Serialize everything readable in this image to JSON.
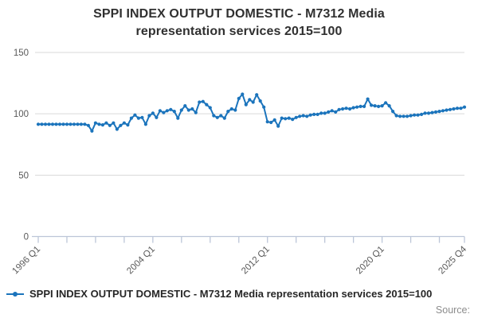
{
  "title_lines": [
    "SPPI INDEX OUTPUT DOMESTIC - M7312 Media",
    "representation services 2015=100"
  ],
  "legend": {
    "label": "SPPI INDEX OUTPUT DOMESTIC - M7312 Media representation services 2015=100"
  },
  "source": {
    "label": "Source:"
  },
  "colors": {
    "line": "#1b74bc",
    "grid": "#d9d9d9",
    "axis": "#bcc6d8",
    "tick_label": "#595959",
    "title_text": "#303030",
    "legend_text": "#262626",
    "source_text": "#8c8c8c"
  },
  "chart_data": {
    "type": "line",
    "title": "SPPI INDEX OUTPUT DOMESTIC - M7312 Media representation services 2015=100",
    "xlabel": "",
    "ylabel": "",
    "ylim": [
      0,
      150
    ],
    "y_ticks": [
      0,
      50,
      100,
      150
    ],
    "grid": "horizontal-only",
    "legend_position": "bottom-left",
    "x_start": "1996 Q1",
    "x_end": "2025 Q4",
    "x_frequency": "quarterly",
    "x_range_quarters": 119,
    "minor_tick_step_quarters": 8,
    "x_tick_quarters": [
      0,
      32,
      64,
      96,
      119
    ],
    "x_tick_labels": [
      "1996 Q1",
      "2004 Q1",
      "2012 Q1",
      "2020 Q1",
      "2025 Q4"
    ],
    "series": [
      {
        "name": "SPPI INDEX OUTPUT DOMESTIC - M7312 Media representation services 2015=100",
        "marker": "dot",
        "values": [
          91.5,
          91.5,
          91.5,
          91.5,
          91.5,
          91.5,
          91.5,
          91.5,
          91.5,
          91.5,
          91.5,
          91.5,
          91.5,
          91.5,
          90.5,
          86,
          92.5,
          91.5,
          91,
          92.5,
          90.5,
          92.5,
          87.5,
          90.5,
          92.5,
          91,
          96.5,
          99,
          96.5,
          97,
          91.5,
          98.5,
          100.5,
          97,
          102.5,
          101,
          102.5,
          103.5,
          102,
          96.5,
          103,
          106.5,
          103,
          104,
          101,
          109.5,
          110,
          107.5,
          105,
          98.5,
          97,
          98.5,
          96.5,
          102,
          104,
          103,
          112.5,
          116,
          107.5,
          111.5,
          109.5,
          115.5,
          110.5,
          105.5,
          93.5,
          93,
          95,
          90,
          96.5,
          96,
          96.5,
          95.5,
          97,
          98,
          98.5,
          98,
          99,
          99.5,
          99.5,
          100.5,
          100.5,
          101.5,
          102.5,
          101.5,
          103.5,
          104,
          104.5,
          104,
          105,
          105.5,
          106,
          106,
          112,
          107,
          106.5,
          106,
          106.5,
          109,
          106.5,
          102,
          98.5,
          98,
          98,
          98,
          98.5,
          99,
          99,
          99.5,
          100.5,
          100.5,
          101,
          101.5,
          102,
          102.5,
          103,
          103.5,
          104,
          104.5,
          104.5,
          105.5
        ]
      }
    ]
  }
}
